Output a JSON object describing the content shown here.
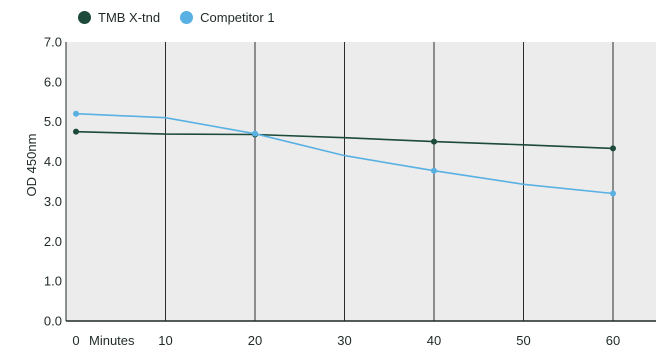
{
  "chart_data": {
    "type": "line",
    "title": "",
    "xlabel": "Minutes",
    "ylabel": "OD 450nm",
    "x": [
      0,
      10,
      20,
      30,
      40,
      50,
      60
    ],
    "x_tick_labels": [
      "0",
      "10",
      "20",
      "30",
      "40",
      "50",
      "60"
    ],
    "y_tick_labels": [
      "0.0",
      "1.0",
      "2.0",
      "3.0",
      "4.0",
      "5.0",
      "6.0",
      "7.0"
    ],
    "xlim": [
      0,
      60
    ],
    "ylim": [
      0,
      7
    ],
    "grid": "vertical lines at x ticks",
    "legend_position": "top-left",
    "series": [
      {
        "name": "TMB X-tnd",
        "color": "#1d4a3a",
        "values": [
          4.75,
          4.69,
          4.68,
          4.6,
          4.5,
          4.42,
          4.33
        ]
      },
      {
        "name": "Competitor 1",
        "color": "#58b0e3",
        "values": [
          5.2,
          5.1,
          4.7,
          4.15,
          3.77,
          3.43,
          3.2
        ]
      }
    ],
    "plot_background": "#ececec",
    "gridline_color": "#2b2b2b"
  }
}
